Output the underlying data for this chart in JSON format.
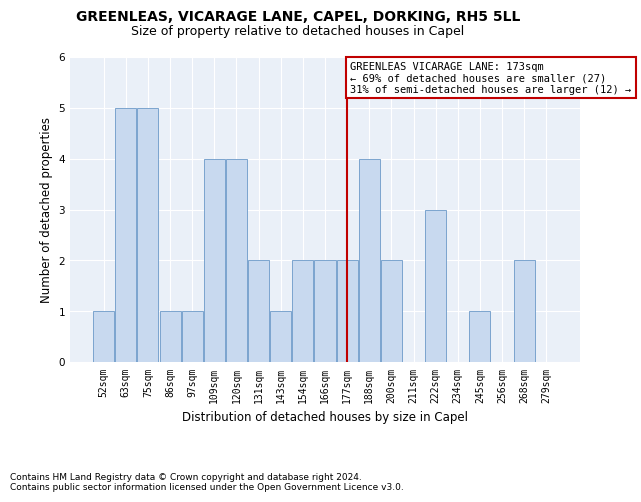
{
  "title": "GREENLEAS, VICARAGE LANE, CAPEL, DORKING, RH5 5LL",
  "subtitle": "Size of property relative to detached houses in Capel",
  "xlabel": "Distribution of detached houses by size in Capel",
  "ylabel": "Number of detached properties",
  "footnote1": "Contains HM Land Registry data © Crown copyright and database right 2024.",
  "footnote2": "Contains public sector information licensed under the Open Government Licence v3.0.",
  "bar_labels": [
    "52sqm",
    "63sqm",
    "75sqm",
    "86sqm",
    "97sqm",
    "109sqm",
    "120sqm",
    "131sqm",
    "143sqm",
    "154sqm",
    "166sqm",
    "177sqm",
    "188sqm",
    "200sqm",
    "211sqm",
    "222sqm",
    "234sqm",
    "245sqm",
    "256sqm",
    "268sqm",
    "279sqm"
  ],
  "bar_values": [
    1,
    5,
    5,
    1,
    1,
    4,
    4,
    2,
    1,
    2,
    2,
    2,
    4,
    2,
    0,
    3,
    0,
    1,
    0,
    2,
    0
  ],
  "bar_color": "#c8d9ef",
  "bar_edgecolor": "#7ba4ce",
  "highlight_index": 11,
  "highlight_color": "#c00000",
  "ylim": [
    0,
    6
  ],
  "yticks": [
    0,
    1,
    2,
    3,
    4,
    5,
    6
  ],
  "annotation_title": "GREENLEAS VICARAGE LANE: 173sqm",
  "annotation_line1": "← 69% of detached houses are smaller (27)",
  "annotation_line2": "31% of semi-detached houses are larger (12) →",
  "annotation_box_color": "#c00000",
  "title_fontsize": 10,
  "subtitle_fontsize": 9,
  "tick_fontsize": 7,
  "ylabel_fontsize": 8.5,
  "xlabel_fontsize": 8.5,
  "footnote_fontsize": 6.5,
  "annotation_fontsize": 7.5,
  "bg_color": "#eaf0f8"
}
